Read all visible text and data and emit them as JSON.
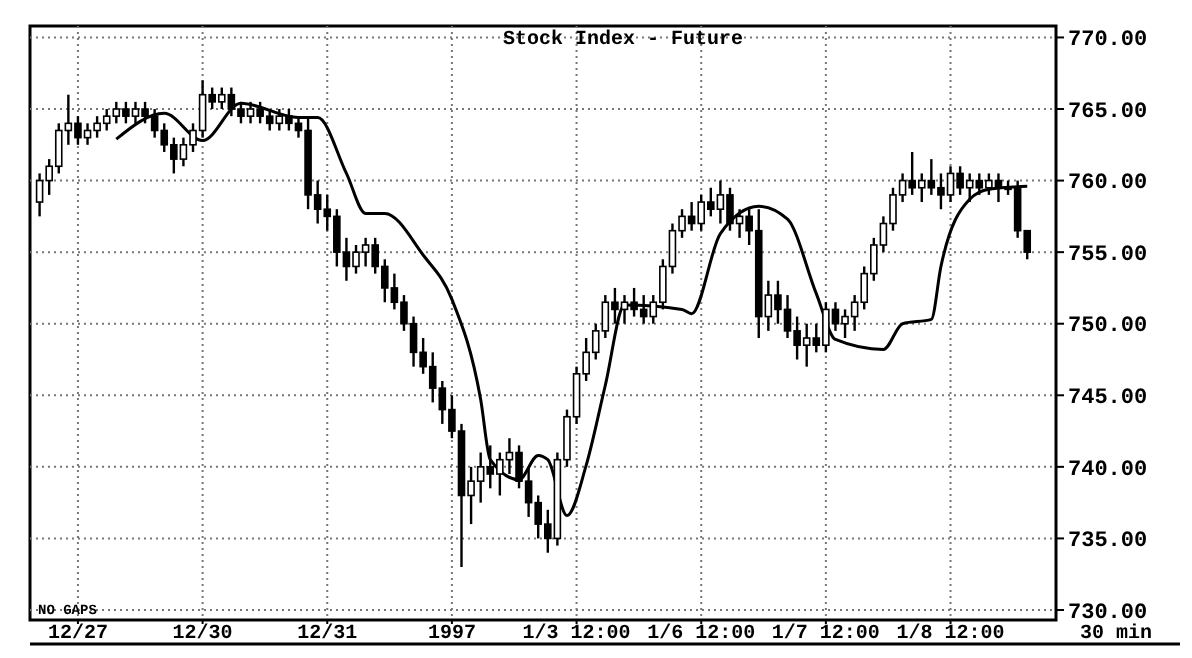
{
  "chart_data": {
    "type": "candlestick",
    "title": "Stock Index - Future",
    "color": "#000000",
    "categories": [
      null,
      null,
      null,
      null,
      "12/27",
      null,
      null,
      null,
      null,
      null,
      null,
      null,
      null,
      null,
      null,
      null,
      null,
      "12/30",
      null,
      null,
      null,
      null,
      null,
      null,
      null,
      null,
      null,
      null,
      null,
      null,
      "12/31",
      null,
      null,
      null,
      null,
      null,
      null,
      null,
      null,
      null,
      null,
      null,
      null,
      "1997",
      null,
      null,
      null,
      null,
      null,
      null,
      null,
      null,
      null,
      null,
      null,
      null,
      "1/3 12:00",
      null,
      null,
      null,
      null,
      null,
      null,
      null,
      null,
      null,
      null,
      null,
      null,
      "1/6 12:00",
      null,
      null,
      null,
      null,
      null,
      null,
      null,
      null,
      null,
      null,
      null,
      null,
      "1/7 12:00",
      null,
      null,
      null,
      null,
      null,
      null,
      null,
      null,
      null,
      null,
      null,
      null,
      "1/8 12:00",
      null,
      null,
      null,
      null,
      null,
      null,
      null,
      null
    ],
    "xlabel": "30 min",
    "ohlc": [
      [
        758.5,
        760.5,
        757.5,
        760
      ],
      [
        760,
        761.5,
        759,
        761
      ],
      [
        761,
        764,
        760.5,
        763.5
      ],
      [
        763.5,
        766,
        762.5,
        764
      ],
      [
        764,
        764.5,
        762.5,
        763
      ],
      [
        763,
        764,
        762.5,
        763.5
      ],
      [
        763.5,
        764.5,
        763,
        764
      ],
      [
        764,
        765,
        763.5,
        764.5
      ],
      [
        764.5,
        765.5,
        764,
        765
      ],
      [
        765,
        765.5,
        764,
        764.5
      ],
      [
        764.5,
        765.5,
        764,
        765
      ],
      [
        765,
        765.5,
        764,
        764.5
      ],
      [
        764.5,
        765,
        763,
        763.5
      ],
      [
        763.5,
        764,
        762,
        762.5
      ],
      [
        762.5,
        763,
        760.5,
        761.5
      ],
      [
        761.5,
        763,
        761,
        762.5
      ],
      [
        762.5,
        764,
        762,
        763.5
      ],
      [
        763.5,
        767,
        763,
        766
      ],
      [
        766,
        766.5,
        765,
        765.5
      ],
      [
        765.5,
        766.5,
        765,
        766
      ],
      [
        766,
        766.5,
        764.5,
        765
      ],
      [
        765,
        765.5,
        764,
        764.5
      ],
      [
        764.5,
        765.5,
        764,
        765
      ],
      [
        765,
        765.5,
        764,
        764.5
      ],
      [
        764.5,
        765,
        763.5,
        764
      ],
      [
        764,
        765,
        763.5,
        764.5
      ],
      [
        764.5,
        765,
        763.5,
        764
      ],
      [
        764,
        764.5,
        763,
        763.5
      ],
      [
        763.5,
        764.5,
        758,
        759
      ],
      [
        759,
        760,
        757,
        758
      ],
      [
        758,
        759,
        756.5,
        757.5
      ],
      [
        757.5,
        758,
        754,
        755
      ],
      [
        755,
        756,
        753,
        754
      ],
      [
        754,
        755.5,
        753.5,
        755
      ],
      [
        755,
        756,
        754,
        755.5
      ],
      [
        755.5,
        756,
        753.5,
        754
      ],
      [
        754,
        754.5,
        751.5,
        752.5
      ],
      [
        752.5,
        753.5,
        751,
        751.5
      ],
      [
        751.5,
        752,
        749.5,
        750
      ],
      [
        750,
        750.5,
        747,
        748
      ],
      [
        748,
        749,
        746.5,
        747
      ],
      [
        747,
        748,
        744.5,
        745.5
      ],
      [
        745.5,
        746,
        743,
        744
      ],
      [
        744,
        745,
        742,
        742.5
      ],
      [
        742.5,
        743,
        733,
        738
      ],
      [
        738,
        740,
        736,
        739
      ],
      [
        739,
        741,
        737.5,
        740
      ],
      [
        740,
        741.5,
        738.5,
        739.5
      ],
      [
        739.5,
        741,
        738,
        740.5
      ],
      [
        740.5,
        742,
        739.5,
        741
      ],
      [
        741,
        741.5,
        738.5,
        739
      ],
      [
        739,
        740,
        736.5,
        737.5
      ],
      [
        737.5,
        738,
        735,
        736
      ],
      [
        736,
        737,
        734,
        735
      ],
      [
        735,
        741,
        734.5,
        740.5
      ],
      [
        740.5,
        744,
        740,
        743.5
      ],
      [
        743.5,
        747,
        743,
        746.5
      ],
      [
        746.5,
        749,
        746,
        748
      ],
      [
        748,
        750,
        747.5,
        749.5
      ],
      [
        749.5,
        752,
        749,
        751.5
      ],
      [
        751.5,
        752.5,
        750,
        751
      ],
      [
        751,
        752,
        750,
        751.5
      ],
      [
        751.5,
        752.5,
        750.5,
        751
      ],
      [
        751,
        752,
        750,
        750.5
      ],
      [
        750.5,
        752,
        750,
        751.5
      ],
      [
        751.5,
        754.5,
        751,
        754
      ],
      [
        754,
        757,
        753.5,
        756.5
      ],
      [
        756.5,
        758,
        756,
        757.5
      ],
      [
        757.5,
        758.5,
        756.5,
        757
      ],
      [
        757,
        759,
        756.5,
        758.5
      ],
      [
        758.5,
        759.5,
        757.5,
        758
      ],
      [
        758,
        760,
        757,
        759
      ],
      [
        759,
        759.5,
        756.5,
        757
      ],
      [
        757,
        758,
        756,
        757.5
      ],
      [
        757.5,
        758,
        755.5,
        756.5
      ],
      [
        756.5,
        758,
        749,
        750.5
      ],
      [
        750.5,
        753,
        749.5,
        752
      ],
      [
        752,
        753,
        750,
        751
      ],
      [
        751,
        752,
        749,
        749.5
      ],
      [
        749.5,
        750.5,
        747.5,
        748.5
      ],
      [
        748.5,
        750,
        747,
        749
      ],
      [
        749,
        750,
        748,
        748.5
      ],
      [
        748.5,
        751.5,
        748,
        751
      ],
      [
        751,
        751.5,
        749.5,
        750
      ],
      [
        750,
        751,
        749,
        750.5
      ],
      [
        750.5,
        752,
        749.5,
        751.5
      ],
      [
        751.5,
        754,
        751,
        753.5
      ],
      [
        753.5,
        756,
        753,
        755.5
      ],
      [
        755.5,
        757.5,
        755,
        757
      ],
      [
        757,
        759.5,
        756.5,
        759
      ],
      [
        759,
        760.5,
        758.5,
        760
      ],
      [
        760,
        762,
        759,
        759.5
      ],
      [
        759.5,
        760.5,
        758.5,
        760
      ],
      [
        760,
        761.5,
        759,
        759.5
      ],
      [
        759.5,
        760.5,
        758,
        759
      ],
      [
        759,
        761,
        758.5,
        760.5
      ],
      [
        760.5,
        761,
        759,
        759.5
      ],
      [
        759.5,
        760.5,
        758.5,
        760
      ],
      [
        760,
        760.5,
        759,
        759.5
      ],
      [
        759.5,
        760.5,
        759,
        760
      ],
      [
        760,
        760.5,
        758.5,
        759.5
      ],
      [
        759.5,
        760,
        759,
        759.5
      ],
      [
        759.5,
        760,
        756,
        756.5
      ],
      [
        756.5,
        756.5,
        754.5,
        755
      ]
    ],
    "series": [
      {
        "type": "line",
        "color": "#000000",
        "values": [
          null,
          null,
          null,
          null,
          null,
          null,
          null,
          null,
          762.9,
          null,
          null,
          null,
          null,
          764.7,
          null,
          null,
          null,
          762.8,
          null,
          null,
          null,
          765.4,
          null,
          null,
          null,
          null,
          null,
          764.4,
          null,
          764.4,
          null,
          null,
          760.5,
          null,
          757.7,
          null,
          757.7,
          null,
          null,
          null,
          754.8,
          null,
          null,
          751.7,
          null,
          null,
          744.7,
          740.5,
          null,
          null,
          739.1,
          null,
          740.8,
          740.5,
          null,
          736.6,
          null,
          740.1,
          null,
          745.7,
          null,
          751.3,
          null,
          null,
          null,
          null,
          null,
          751,
          750.7,
          null,
          null,
          756.3,
          null,
          null,
          null,
          758.2,
          null,
          null,
          757.3,
          null,
          null,
          752.1,
          null,
          748.9,
          null,
          null,
          null,
          null,
          748.2,
          null,
          750,
          null,
          null,
          750.3,
          754,
          null,
          null,
          758.7,
          null,
          759.4,
          null,
          null,
          null,
          759.6
        ]
      }
    ],
    "ylim": [
      729.3,
      770.8
    ],
    "yticks": [
      {
        "value": 730,
        "label": "730.00"
      },
      {
        "value": 735,
        "label": "735.00"
      },
      {
        "value": 740,
        "label": "740.00"
      },
      {
        "value": 745,
        "label": "745.00"
      },
      {
        "value": 750,
        "label": "750.00"
      },
      {
        "value": 755,
        "label": "755.00"
      },
      {
        "value": 760,
        "label": "760.00"
      },
      {
        "value": 765,
        "label": "765.00"
      },
      {
        "value": 770,
        "label": "770.00"
      }
    ],
    "grid": true,
    "annotations": [
      "NO GAPS"
    ]
  }
}
